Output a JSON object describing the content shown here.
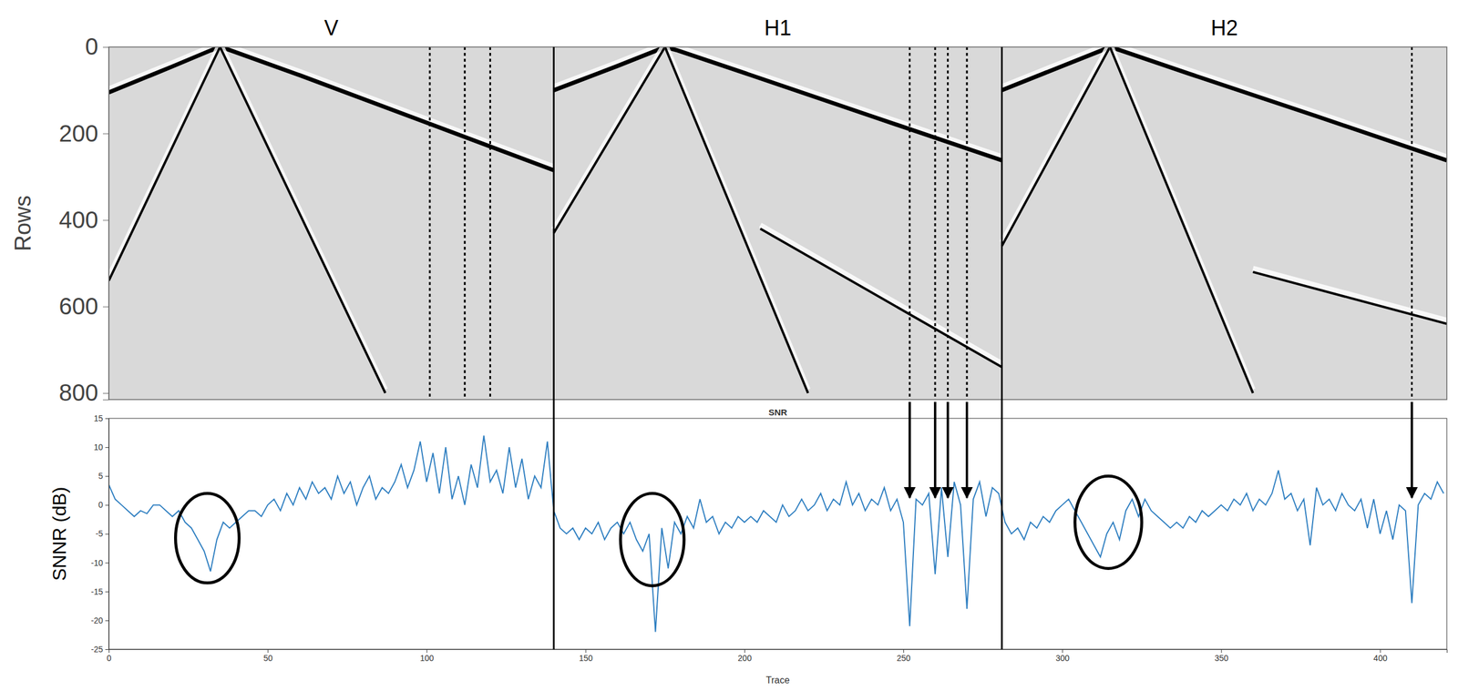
{
  "chart_data": [
    {
      "type": "line",
      "panels": [
        "V",
        "H1",
        "H2"
      ],
      "ylabel": "Rows",
      "xlim": [
        0,
        421
      ],
      "ylim": [
        0,
        815
      ],
      "yticks": [
        0,
        200,
        400,
        600,
        800
      ],
      "tick_labels": "y",
      "grid": false,
      "dividers": [
        140,
        281
      ],
      "bad_traces": [
        101,
        112,
        120,
        252,
        260,
        264,
        270,
        410
      ],
      "series": [
        {
          "color": "#000000",
          "x": [
            0,
            20,
            32,
            35,
            38,
            60,
            100,
            140
          ],
          "values": [
            105,
            45,
            8,
            0,
            7,
            65,
            175,
            285
          ]
        },
        {
          "color": "#000000",
          "x": [
            140,
            160,
            172,
            175,
            179,
            200,
            240,
            281
          ],
          "values": [
            100,
            44,
            9,
            0,
            8,
            60,
            160,
            262
          ]
        },
        {
          "color": "#000000",
          "x": [
            281,
            300,
            312,
            315,
            318,
            340,
            380,
            421
          ],
          "values": [
            100,
            44,
            9,
            0,
            7,
            62,
            160,
            262
          ]
        },
        {
          "color": "#000000",
          "x": [
            35,
            0
          ],
          "values": [
            0,
            540
          ]
        },
        {
          "color": "#000000",
          "x": [
            35,
            87
          ],
          "values": [
            0,
            800
          ]
        },
        {
          "color": "#000000",
          "x": [
            175,
            140
          ],
          "values": [
            0,
            430
          ]
        },
        {
          "color": "#000000",
          "x": [
            175,
            220
          ],
          "values": [
            0,
            800
          ]
        },
        {
          "color": "#000000",
          "x": [
            205,
            281
          ],
          "values": [
            420,
            740
          ]
        },
        {
          "color": "#000000",
          "x": [
            315,
            281
          ],
          "values": [
            0,
            460
          ]
        },
        {
          "color": "#000000",
          "x": [
            315,
            360
          ],
          "values": [
            0,
            800
          ]
        },
        {
          "color": "#000000",
          "x": [
            360,
            421
          ],
          "values": [
            520,
            640
          ]
        }
      ]
    },
    {
      "type": "line",
      "title": "SNR",
      "xlabel": "Trace",
      "ylabel": "SNNR (dB)",
      "color": "#2f7fc1",
      "grid": false,
      "xlim": [
        0,
        421
      ],
      "ylim": [
        -25,
        15
      ],
      "xticks": [
        0,
        50,
        100,
        150,
        200,
        250,
        300,
        350,
        400
      ],
      "yticks": [
        15,
        10,
        5,
        0,
        -5,
        -10,
        -15,
        -20,
        -25
      ],
      "x": [
        0,
        2,
        4,
        6,
        8,
        10,
        12,
        14,
        16,
        18,
        20,
        22,
        24,
        26,
        28,
        30,
        32,
        34,
        36,
        38,
        40,
        42,
        44,
        46,
        48,
        50,
        52,
        54,
        56,
        58,
        60,
        62,
        64,
        66,
        68,
        70,
        72,
        74,
        76,
        78,
        80,
        82,
        84,
        86,
        88,
        90,
        92,
        94,
        96,
        98,
        100,
        102,
        104,
        106,
        108,
        110,
        112,
        114,
        116,
        118,
        120,
        122,
        124,
        126,
        128,
        130,
        132,
        134,
        136,
        138,
        140,
        142,
        144,
        146,
        148,
        150,
        152,
        154,
        156,
        158,
        160,
        162,
        164,
        166,
        168,
        170,
        172,
        174,
        176,
        178,
        180,
        182,
        184,
        186,
        188,
        190,
        192,
        194,
        196,
        198,
        200,
        202,
        204,
        206,
        208,
        210,
        212,
        214,
        216,
        218,
        220,
        222,
        224,
        226,
        228,
        230,
        232,
        234,
        236,
        238,
        240,
        242,
        244,
        246,
        248,
        250,
        252,
        254,
        256,
        258,
        260,
        262,
        264,
        266,
        268,
        270,
        272,
        274,
        276,
        278,
        280,
        282,
        284,
        286,
        288,
        290,
        292,
        294,
        296,
        298,
        300,
        302,
        304,
        306,
        308,
        310,
        312,
        314,
        316,
        318,
        320,
        322,
        324,
        326,
        328,
        330,
        332,
        334,
        336,
        338,
        340,
        342,
        344,
        346,
        348,
        350,
        352,
        354,
        356,
        358,
        360,
        362,
        364,
        366,
        368,
        370,
        372,
        374,
        376,
        378,
        380,
        382,
        384,
        386,
        388,
        390,
        392,
        394,
        396,
        398,
        400,
        402,
        404,
        406,
        408,
        410,
        412,
        414,
        416,
        418,
        420
      ],
      "values": [
        3.5,
        1,
        0,
        -1,
        -2,
        -1,
        -1.5,
        0,
        0,
        -1,
        -2,
        -1,
        -3,
        -4,
        -6,
        -8,
        -11.5,
        -6,
        -3,
        -4,
        -3,
        -2,
        -1,
        -1,
        -2,
        0,
        1,
        -1,
        2,
        0,
        3,
        1,
        4,
        2,
        3,
        1,
        5,
        2,
        4,
        0,
        3,
        5,
        1,
        3,
        2,
        4,
        7,
        3,
        6,
        11,
        4,
        9,
        2,
        10,
        1,
        5,
        0,
        7,
        3,
        12,
        4,
        6,
        2,
        10,
        3,
        8,
        1,
        5,
        3,
        11,
        -1,
        -4,
        -5,
        -4,
        -6,
        -4,
        -5,
        -3,
        -6,
        -4,
        -3,
        -5,
        -3,
        -6,
        -8,
        -5,
        -22,
        -4,
        -11,
        -3,
        -5,
        -2,
        -4,
        1,
        -3,
        -2,
        -5,
        -3,
        -4,
        -2,
        -3,
        -2,
        -3,
        -1,
        -2,
        -3,
        0,
        -2,
        -1,
        1,
        -1,
        0,
        2,
        -1,
        1,
        0,
        4,
        0,
        2,
        -1,
        1,
        0,
        3,
        -1,
        1,
        -3,
        -21,
        1,
        0,
        2,
        -12,
        3,
        -9,
        4,
        0,
        -18,
        1,
        4,
        -2,
        3,
        2,
        -3,
        -5,
        -4,
        -6,
        -3,
        -4,
        -2,
        -3,
        -1,
        0,
        1,
        -1,
        -3,
        -5,
        -7,
        -9,
        -5,
        -3,
        -6,
        -1,
        1,
        -2,
        1,
        -1,
        -2,
        -3,
        -4,
        -3,
        -4,
        -2,
        -3,
        -1,
        -2,
        -1,
        0,
        -1,
        1,
        0,
        2,
        -1,
        1,
        0,
        2,
        6,
        1,
        2,
        -1,
        1,
        -7,
        3,
        0,
        1,
        -1,
        2,
        0,
        -1,
        1,
        -4,
        1,
        -5,
        -1,
        -6,
        0,
        -1,
        -17,
        0,
        2,
        1,
        4,
        2
      ],
      "highlights": [
        {
          "x": [
            21,
            41
          ],
          "y": [
            -13.5,
            2
          ]
        },
        {
          "x": [
            161,
            181
          ],
          "y": [
            -14,
            2
          ]
        },
        {
          "x": [
            304,
            325
          ],
          "y": [
            -11,
            5
          ]
        }
      ],
      "arrows": [
        252,
        260,
        264,
        270,
        410
      ]
    }
  ]
}
